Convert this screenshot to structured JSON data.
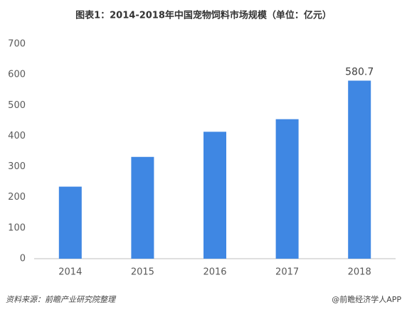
{
  "chart_data": {
    "type": "bar",
    "title": "图表1：2014-2018年中国宠物饲料市场规模（单位：亿元）",
    "categories": [
      "2014",
      "2015",
      "2016",
      "2017",
      "2018"
    ],
    "values": [
      235,
      332,
      414,
      455,
      580.7
    ],
    "value_labels": [
      null,
      null,
      null,
      null,
      "580.7"
    ],
    "color": "#3f87e3",
    "ylim": [
      0,
      700
    ],
    "yticks": [
      0,
      100,
      200,
      300,
      400,
      500,
      600,
      700
    ],
    "grid": false,
    "source": "资料来源：前瞻产业研究院整理",
    "credit": "@前瞻经济学人APP"
  }
}
